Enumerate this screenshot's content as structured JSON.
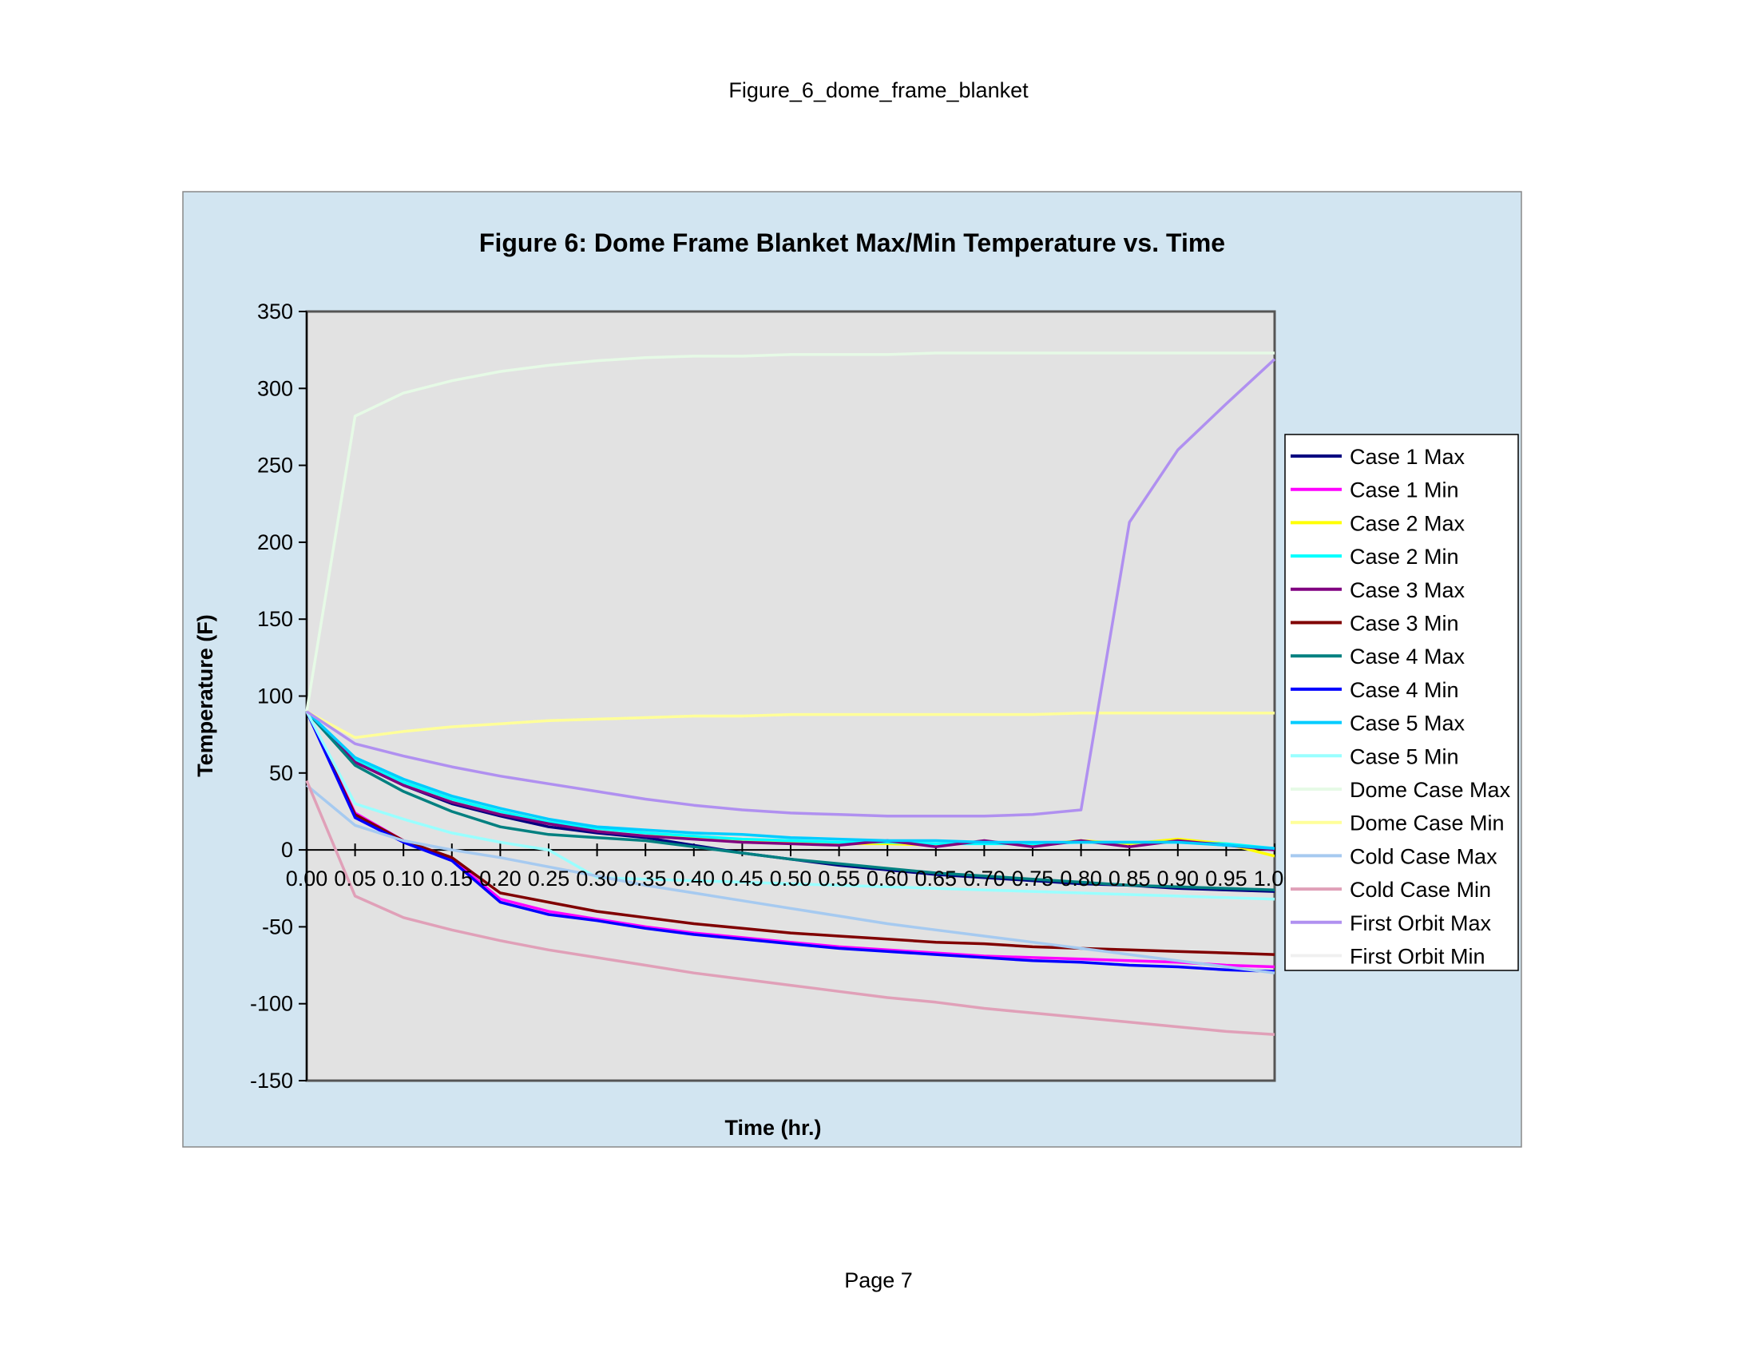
{
  "page": {
    "header": "Figure_6_dome_frame_blanket",
    "footer": "Page 7"
  },
  "colors": {
    "chart_area_bg": "#D2E5F1",
    "plot_area_bg": "#E2E2E2",
    "legend_bg": "#FFFFFF"
  },
  "chart_data": {
    "type": "line",
    "title": "Figure 6: Dome Frame Blanket Max/Min Temperature vs. Time",
    "xlabel": "Time (hr.)",
    "ylabel": "Temperature (F)",
    "ylim": [
      -150,
      350
    ],
    "yticks": [
      "350",
      "300",
      "250",
      "200",
      "150",
      "100",
      "50",
      "0",
      "-50",
      "-100",
      "-150"
    ],
    "xticks": [
      "0.00",
      "0.05",
      "0.10",
      "0.15",
      "0.20",
      "0.25",
      "0.30",
      "0.35",
      "0.40",
      "0.45",
      "0.50",
      "0.55",
      "0.60",
      "0.65",
      "0.70",
      "0.75",
      "0.80",
      "0.85",
      "0.90",
      "0.95",
      "1.00"
    ],
    "x": [
      0.0,
      0.05,
      0.1,
      0.15,
      0.2,
      0.25,
      0.3,
      0.35,
      0.4,
      0.45,
      0.5,
      0.55,
      0.6,
      0.65,
      0.7,
      0.75,
      0.8,
      0.85,
      0.9,
      0.95,
      1.0
    ],
    "grid": false,
    "legend_position": "right",
    "series": [
      {
        "name": "Case 1 Max",
        "color": "#000080",
        "values": [
          90,
          57,
          42,
          30,
          22,
          15,
          11,
          8,
          3,
          -2,
          -6,
          -10,
          -13,
          -16,
          -18,
          -20,
          -22,
          -23,
          -25,
          -26,
          -27
        ]
      },
      {
        "name": "Case 1 Min",
        "color": "#FF00FF",
        "values": [
          90,
          24,
          6,
          -6,
          -32,
          -40,
          -45,
          -50,
          -54,
          -57,
          -60,
          -63,
          -65,
          -67,
          -69,
          -70,
          -71,
          -72,
          -73,
          -75,
          -76
        ]
      },
      {
        "name": "Case 2 Max",
        "color": "#FFFF00",
        "values": [
          90,
          58,
          44,
          33,
          25,
          18,
          14,
          11,
          8,
          6,
          5,
          4,
          4,
          3,
          5,
          3,
          6,
          4,
          7,
          4,
          -4
        ]
      },
      {
        "name": "Case 2 Min",
        "color": "#00FFFF",
        "values": [
          90,
          58,
          44,
          33,
          25,
          18,
          14,
          11,
          9,
          7,
          6,
          5,
          5,
          4,
          4,
          4,
          5,
          5,
          5,
          4,
          1
        ]
      },
      {
        "name": "Case 3 Max",
        "color": "#800080",
        "values": [
          90,
          57,
          42,
          31,
          23,
          17,
          12,
          9,
          7,
          5,
          4,
          3,
          6,
          2,
          6,
          2,
          6,
          2,
          6,
          3,
          0
        ]
      },
      {
        "name": "Case 3 Min",
        "color": "#800000",
        "values": [
          90,
          23,
          6,
          -5,
          -28,
          -34,
          -40,
          -44,
          -48,
          -51,
          -54,
          -56,
          -58,
          -60,
          -61,
          -63,
          -64,
          -65,
          -66,
          -67,
          -68
        ]
      },
      {
        "name": "Case 4 Max",
        "color": "#008080",
        "values": [
          90,
          55,
          38,
          25,
          15,
          10,
          8,
          6,
          2,
          -2,
          -6,
          -9,
          -12,
          -15,
          -17,
          -19,
          -21,
          -23,
          -24,
          -25,
          -26
        ]
      },
      {
        "name": "Case 4 Min",
        "color": "#0000FF",
        "values": [
          90,
          21,
          5,
          -7,
          -34,
          -42,
          -46,
          -51,
          -55,
          -58,
          -61,
          -64,
          -66,
          -68,
          -70,
          -72,
          -73,
          -75,
          -76,
          -78,
          -79
        ]
      },
      {
        "name": "Case 5 Max",
        "color": "#00CCFF",
        "values": [
          90,
          60,
          46,
          35,
          27,
          20,
          15,
          13,
          11,
          10,
          8,
          7,
          6,
          6,
          5,
          5,
          5,
          5,
          5,
          3,
          1
        ]
      },
      {
        "name": "Case 5 Min",
        "color": "#99FFFF",
        "values": [
          90,
          30,
          20,
          11,
          5,
          0,
          -18,
          -19,
          -20,
          -21,
          -22,
          -23,
          -24,
          -25,
          -26,
          -27,
          -28,
          -29,
          -30,
          -31,
          -32
        ]
      },
      {
        "name": "Dome Case Max",
        "color": "#E6FAE6",
        "values": [
          90,
          282,
          297,
          305,
          311,
          315,
          318,
          320,
          321,
          321,
          322,
          322,
          322,
          323,
          323,
          323,
          323,
          323,
          323,
          323,
          323
        ]
      },
      {
        "name": "Dome Case Min",
        "color": "#FFFF99",
        "values": [
          90,
          73,
          77,
          80,
          82,
          84,
          85,
          86,
          87,
          87,
          88,
          88,
          88,
          88,
          88,
          88,
          89,
          89,
          89,
          89,
          89
        ]
      },
      {
        "name": "Cold Case Max",
        "color": "#A6CAF0",
        "values": [
          42,
          16,
          6,
          0,
          -5,
          -11,
          -17,
          -23,
          -28,
          -33,
          -38,
          -43,
          -48,
          -52,
          -56,
          -60,
          -64,
          -68,
          -72,
          -76,
          -80
        ]
      },
      {
        "name": "Cold Case Min",
        "color": "#E0A0B8",
        "values": [
          45,
          -30,
          -44,
          -52,
          -59,
          -65,
          -70,
          -75,
          -80,
          -84,
          -88,
          -92,
          -96,
          -99,
          -103,
          -106,
          -109,
          -112,
          -115,
          -118,
          -120
        ]
      },
      {
        "name": "First Orbit Max",
        "color": "#B090F0",
        "values": [
          90,
          69,
          61,
          54,
          48,
          43,
          38,
          33,
          29,
          26,
          24,
          23,
          22,
          22,
          22,
          23,
          26,
          213,
          260,
          290,
          319
        ]
      },
      {
        "name": "First Orbit Min",
        "color": "#F0F0F0",
        "values": [
          90,
          null,
          null,
          null,
          null,
          null,
          null,
          null,
          null,
          null,
          null,
          null,
          null,
          null,
          null,
          null,
          null,
          null,
          null,
          null,
          null
        ]
      }
    ]
  }
}
